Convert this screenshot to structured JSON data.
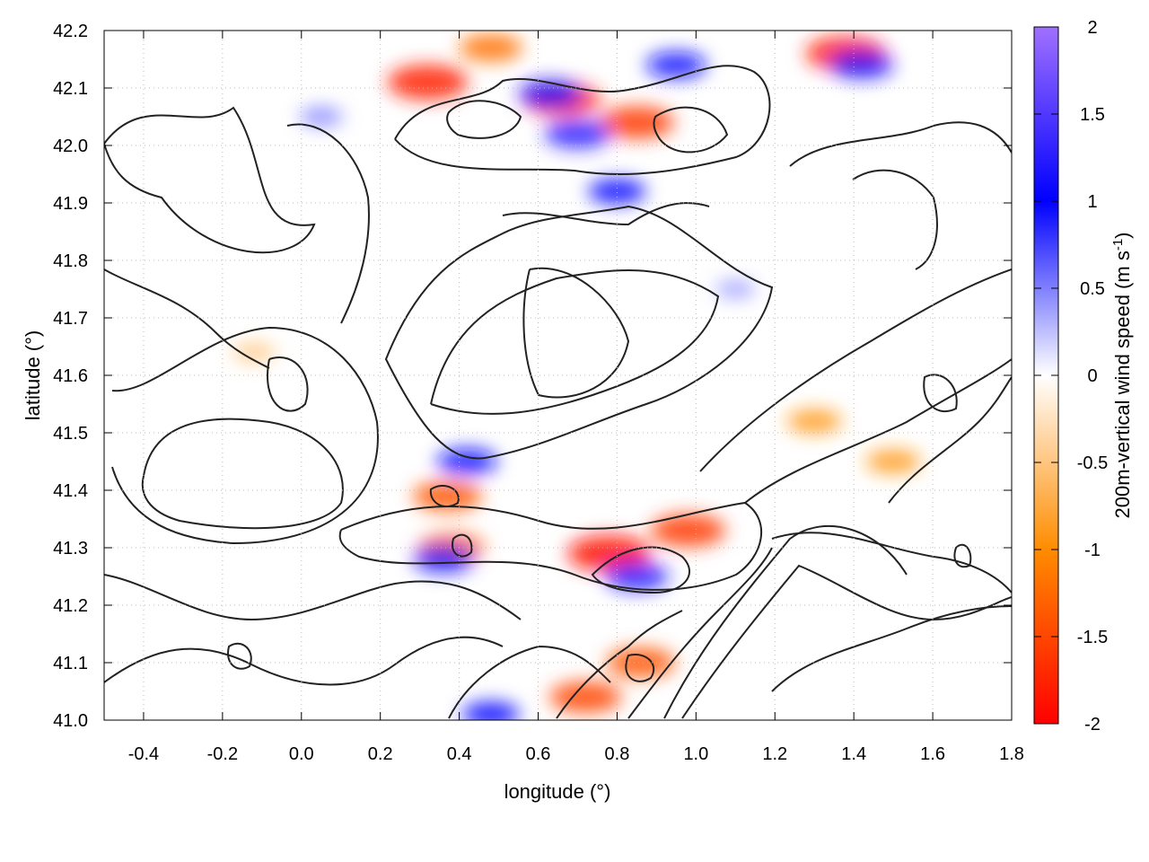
{
  "chart_data": {
    "type": "heatmap",
    "title": "",
    "xlabel": "longitude (°)",
    "ylabel": "latitude (°)",
    "colorbar_label_main": "200m-vertical wind speed (m s",
    "colorbar_label_sup": "-1",
    "colorbar_label_end": ")",
    "xlim": [
      -0.5,
      1.8
    ],
    "ylim": [
      41.0,
      42.2
    ],
    "clim": [
      -2,
      2
    ],
    "grid": true,
    "x_ticks": [
      "-0.4",
      "-0.2",
      "0.0",
      "0.2",
      "0.4",
      "0.6",
      "0.8",
      "1.0",
      "1.2",
      "1.4",
      "1.6",
      "1.8"
    ],
    "y_ticks": [
      "41.0",
      "41.1",
      "41.2",
      "41.3",
      "41.4",
      "41.5",
      "41.6",
      "41.7",
      "41.8",
      "41.9",
      "42.0",
      "42.1",
      "42.2"
    ],
    "colorbar_ticks": [
      "-2",
      "-1.5",
      "-1",
      "-0.5",
      "0",
      "0.5",
      "1",
      "1.5",
      "2"
    ],
    "colormap": [
      "#ff0000",
      "#ff8c00",
      "#ffffff",
      "#0000ff",
      "#a070ff"
    ],
    "contour_color": "#222222",
    "extrema": [
      {
        "x": 0.32,
        "y": 42.11,
        "value": -1.8
      },
      {
        "x": 0.66,
        "y": 42.08,
        "value": -1.7
      },
      {
        "x": 0.85,
        "y": 42.04,
        "value": -1.6
      },
      {
        "x": 1.38,
        "y": 42.16,
        "value": -1.8
      },
      {
        "x": 0.48,
        "y": 42.17,
        "value": -1.2
      },
      {
        "x": 0.78,
        "y": 41.29,
        "value": -1.9
      },
      {
        "x": 0.98,
        "y": 41.33,
        "value": -1.6
      },
      {
        "x": 0.37,
        "y": 41.39,
        "value": -1.4
      },
      {
        "x": 0.38,
        "y": 41.3,
        "value": -1.3
      },
      {
        "x": 0.72,
        "y": 41.04,
        "value": -1.5
      },
      {
        "x": 0.86,
        "y": 41.1,
        "value": -1.4
      },
      {
        "x": 1.3,
        "y": 41.52,
        "value": -0.9
      },
      {
        "x": 1.5,
        "y": 41.45,
        "value": -0.9
      },
      {
        "x": -0.12,
        "y": 41.64,
        "value": -0.5
      },
      {
        "x": 0.85,
        "y": 41.25,
        "value": 1.2
      },
      {
        "x": 0.42,
        "y": 41.45,
        "value": 1.1
      },
      {
        "x": 0.7,
        "y": 42.02,
        "value": 1.3
      },
      {
        "x": 0.63,
        "y": 42.09,
        "value": 1.2
      },
      {
        "x": 0.95,
        "y": 42.14,
        "value": 1.1
      },
      {
        "x": 1.42,
        "y": 42.14,
        "value": 1.2
      },
      {
        "x": 0.48,
        "y": 41.01,
        "value": 1.0
      },
      {
        "x": 0.36,
        "y": 41.28,
        "value": 1.1
      },
      {
        "x": 0.8,
        "y": 41.92,
        "value": 1.0
      },
      {
        "x": 1.1,
        "y": 41.75,
        "value": 0.4
      },
      {
        "x": 0.05,
        "y": 42.05,
        "value": 0.5
      }
    ]
  }
}
